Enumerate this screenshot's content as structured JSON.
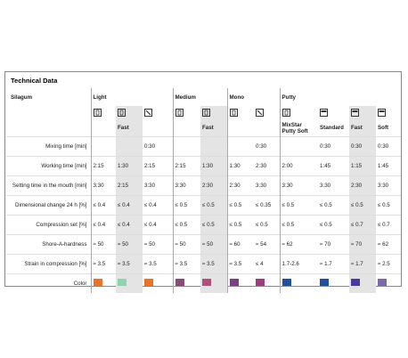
{
  "header": {
    "title": "Technical Data"
  },
  "table": {
    "product": "Silagum",
    "groups": [
      {
        "name": "Light",
        "columns": [
          {
            "label": null,
            "icon": "cartridge"
          },
          {
            "label": "Fast",
            "icon": "cartridge",
            "highlight": true
          },
          {
            "label": null,
            "icon": "syringe"
          }
        ]
      },
      {
        "name": "Medium",
        "columns": [
          {
            "label": null,
            "icon": "cartridge"
          },
          {
            "label": "Fast",
            "icon": "cartridge",
            "highlight": true
          }
        ]
      },
      {
        "name": "Mono",
        "columns": [
          {
            "label": null,
            "icon": "cartridge"
          },
          {
            "label": null,
            "icon": "syringe"
          }
        ]
      },
      {
        "name": "Putty",
        "columns": [
          {
            "label": "MixStar Putty Soft",
            "icon": "cartridge"
          },
          {
            "label": "Standard",
            "icon": "tub"
          },
          {
            "label": "Fast",
            "icon": "tub",
            "highlight": true
          },
          {
            "label": "Soft",
            "icon": "tub"
          }
        ]
      }
    ],
    "rows": [
      {
        "label": "Mixing time [min]",
        "cells": [
          null,
          null,
          "0:30",
          null,
          null,
          null,
          "0:30",
          null,
          "0:30",
          "0:30",
          "0:30"
        ]
      },
      {
        "label": "Working time [min]",
        "cells": [
          "2:15",
          "1:30",
          "2:15",
          "2:15",
          "1:30",
          "1:30",
          "2:30",
          "2:00",
          "1:45",
          "1:15",
          "1:45"
        ]
      },
      {
        "label": "Setting time in the mouth [min]",
        "cells": [
          "3:30",
          "2:15",
          "3:30",
          "3:30",
          "2:30",
          "2:30",
          "3:30",
          "3:30",
          "3:30",
          "2:30",
          "3:30"
        ]
      },
      {
        "label": "Dimensional change 24 h [%]",
        "cells": [
          "≤ 0.4",
          "≤ 0.4",
          "≤ 0.4",
          "≤ 0.5",
          "≤ 0.5",
          "≤ 0.5",
          "≤ 0.35",
          "≤ 0.5",
          "≤ 0.5",
          "≤ 0.5",
          "≤ 0.5"
        ]
      },
      {
        "label": "Compression set [%]",
        "cells": [
          "≤ 0.4",
          "≤ 0.4",
          "≤ 0.4",
          "≤ 0.5",
          "≤ 0.5",
          "≤ 0.5",
          "≤ 0.5",
          "≤ 0.5",
          "≤ 0.5",
          "≤ 0.7",
          "≤ 0.7"
        ]
      },
      {
        "label": "Shore-A-hardness",
        "cells": [
          "≈ 50",
          "≈ 50",
          "≈ 50",
          "≈ 50",
          "≈ 50",
          "≈ 60",
          "≈ 54",
          "≈ 62",
          "≈ 70",
          "≈ 70",
          "≈ 62"
        ]
      },
      {
        "label": "Strain in compression [%]",
        "cells": [
          "≈ 3.5",
          "≈ 3.5",
          "≈ 3.5",
          "≈ 3.5",
          "≈ 3.5",
          "≈ 3.5",
          "≤ 4",
          "1.7-2.6",
          "≈ 1.7",
          "≈ 1.7",
          "≈ 2.5"
        ]
      }
    ],
    "color_row": {
      "label": "Color",
      "colors": [
        "#e8742a",
        "#8fd3b0",
        "#e8742a",
        "#8a4a78",
        "#b0507e",
        "#7a3f86",
        "#9a3f7e",
        "#1f4f9e",
        "#1f4f9e",
        "#4b3aa0",
        "#7a68b0"
      ]
    }
  }
}
